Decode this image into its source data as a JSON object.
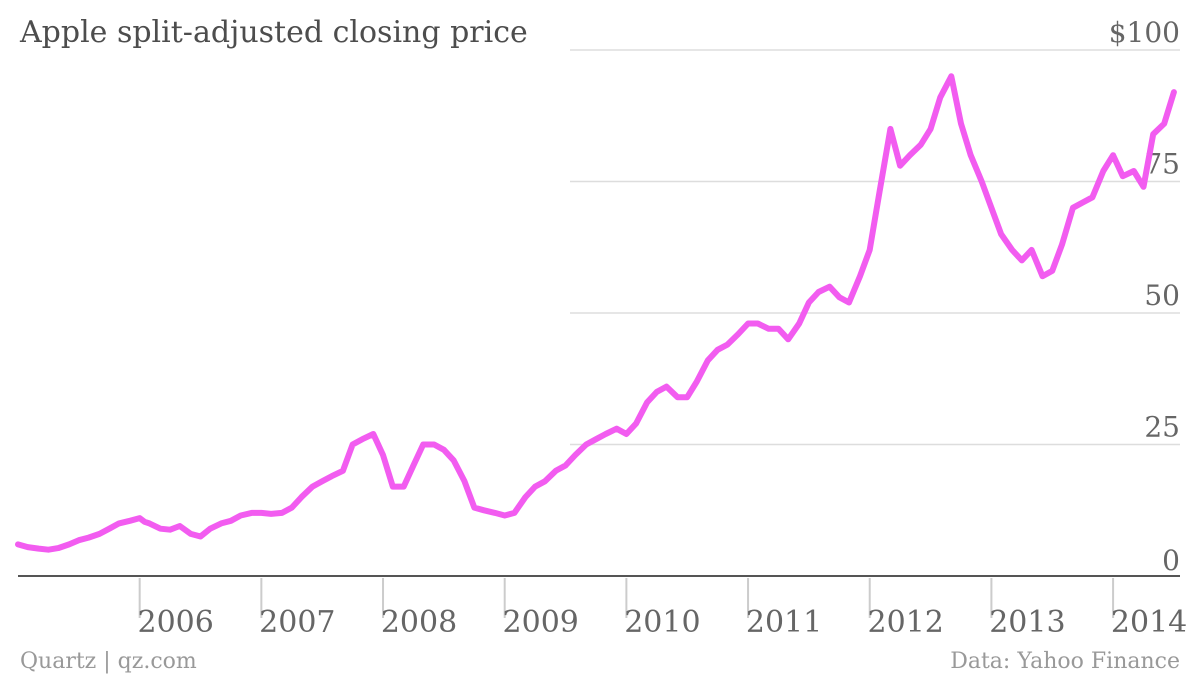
{
  "chart_data": {
    "type": "line",
    "title": "Apple split-adjusted closing price",
    "xlabel": "",
    "ylabel": "",
    "xlim": [
      2005.0,
      2014.55
    ],
    "ylim": [
      0,
      100
    ],
    "y_ticks": [
      0,
      25,
      50,
      75,
      100
    ],
    "y_tick_labels": [
      "0",
      "25",
      "50",
      "75",
      "$100"
    ],
    "x_ticks": [
      2006,
      2007,
      2008,
      2009,
      2010,
      2011,
      2012,
      2013,
      2014
    ],
    "x_tick_labels": [
      "2006",
      "2007",
      "2008",
      "2009",
      "2010",
      "2011",
      "2012",
      "2013",
      "2014"
    ],
    "grid": true,
    "legend": "none",
    "source": "Data: Yahoo Finance",
    "credit": "Quartz | qz.com",
    "colors": {
      "series": "#f25cf0",
      "grid": "#dddddd",
      "axis": "#555555"
    },
    "series": [
      {
        "x": [
          2005.0,
          2005.08,
          2005.17,
          2005.25,
          2005.33,
          2005.42,
          2005.5,
          2005.58,
          2005.67,
          2005.75,
          2005.83,
          2005.92,
          2006.0,
          2006.04,
          2006.08,
          2006.17,
          2006.25,
          2006.33,
          2006.42,
          2006.5,
          2006.58,
          2006.67,
          2006.75,
          2006.83,
          2006.92,
          2007.0,
          2007.08,
          2007.17,
          2007.25,
          2007.33,
          2007.42,
          2007.5,
          2007.58,
          2007.67,
          2007.75,
          2007.83,
          2007.92,
          2008.0,
          2008.08,
          2008.17,
          2008.25,
          2008.33,
          2008.42,
          2008.5,
          2008.58,
          2008.67,
          2008.75,
          2008.83,
          2008.92,
          2009.0,
          2009.08,
          2009.17,
          2009.25,
          2009.33,
          2009.42,
          2009.5,
          2009.58,
          2009.67,
          2009.75,
          2009.83,
          2009.92,
          2010.0,
          2010.08,
          2010.17,
          2010.25,
          2010.33,
          2010.42,
          2010.5,
          2010.58,
          2010.67,
          2010.75,
          2010.83,
          2010.92,
          2011.0,
          2011.08,
          2011.17,
          2011.25,
          2011.33,
          2011.42,
          2011.5,
          2011.58,
          2011.67,
          2011.75,
          2011.83,
          2011.92,
          2012.0,
          2012.08,
          2012.17,
          2012.25,
          2012.33,
          2012.42,
          2012.5,
          2012.58,
          2012.67,
          2012.75,
          2012.83,
          2012.92,
          2013.0,
          2013.08,
          2013.17,
          2013.25,
          2013.33,
          2013.42,
          2013.5,
          2013.58,
          2013.67,
          2013.75,
          2013.83,
          2013.92,
          2014.0,
          2014.08,
          2014.17,
          2014.25,
          2014.33,
          2014.42,
          2014.5
        ],
        "y": [
          6,
          5.5,
          5.2,
          5,
          5.3,
          6,
          6.8,
          7.3,
          8,
          9,
          10,
          10.5,
          11,
          10.3,
          10,
          9,
          8.8,
          9.5,
          8,
          7.5,
          9,
          10,
          10.5,
          11.5,
          12,
          12,
          11.8,
          12,
          13,
          15,
          17,
          18,
          19,
          20,
          25,
          26,
          27,
          23,
          17,
          17,
          21,
          25,
          25,
          24,
          22,
          18,
          13,
          12.5,
          12,
          11.5,
          12,
          15,
          17,
          18,
          20,
          21,
          23,
          25,
          26,
          27,
          28,
          27,
          29,
          33,
          35,
          36,
          34,
          34,
          37,
          41,
          43,
          44,
          46,
          48,
          48,
          47,
          47,
          45,
          48,
          52,
          54,
          55,
          53,
          52,
          57,
          62,
          73,
          85,
          78,
          80,
          82,
          85,
          91,
          95,
          86,
          80,
          75,
          70,
          65,
          62,
          60,
          62,
          57,
          58,
          63,
          70,
          71,
          72,
          77,
          80,
          76,
          77,
          74,
          84,
          86,
          92
        ]
      }
    ]
  }
}
